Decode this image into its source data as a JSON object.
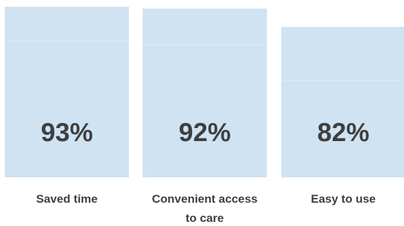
{
  "chart_data": {
    "type": "bar",
    "categories": [
      "Saved time",
      "Convenient access to care",
      "Easy to use"
    ],
    "category_lines": [
      [
        "Saved time"
      ],
      [
        "Convenient access",
        "to care"
      ],
      [
        "Easy to use"
      ]
    ],
    "values": [
      93,
      92,
      82
    ],
    "value_labels": [
      "93%",
      "92%",
      "82%"
    ],
    "title": "",
    "xlabel": "",
    "ylabel": "",
    "ylim": [
      0,
      100
    ],
    "grid": false,
    "bar_color": "#cfe3f3",
    "label_color": "#3f3f3f"
  }
}
